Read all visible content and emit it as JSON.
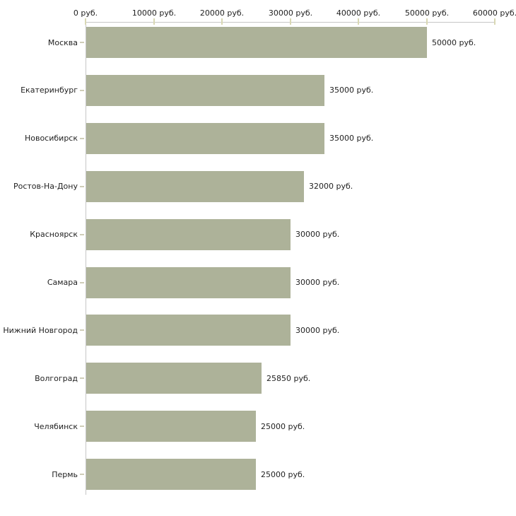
{
  "chart_data": {
    "type": "bar",
    "orientation": "horizontal",
    "title": "",
    "xlabel": "",
    "ylabel": "",
    "categories": [
      "Москва",
      "Екатеринбург",
      "Новосибирск",
      "Ростов-На-Дону",
      "Красноярск",
      "Самара",
      "Нижний Новгород",
      "Волгоград",
      "Челябинск",
      "Пермь"
    ],
    "values": [
      50000,
      35000,
      35000,
      32000,
      30000,
      30000,
      30000,
      25850,
      25000,
      25000
    ],
    "value_labels": [
      "50000 руб.",
      "35000 руб.",
      "35000 руб.",
      "32000 руб.",
      "30000 руб.",
      "30000 руб.",
      "30000 руб.",
      "25850 руб.",
      "25000 руб.",
      "25000 руб."
    ],
    "xlim": [
      0,
      60000
    ],
    "x_ticks": [
      0,
      10000,
      20000,
      30000,
      40000,
      50000,
      60000
    ],
    "x_tick_labels": [
      "0 руб.",
      "10000 руб.",
      "20000 руб.",
      "30000 руб.",
      "40000 руб.",
      "50000 руб.",
      "60000 руб."
    ],
    "axis_position": "top",
    "grid": false,
    "legend": false,
    "colors": {
      "bar": "#adb299",
      "axis_line": "#c6c6c6",
      "axis_tick": "#d9d8b4",
      "y_tick": "#cfcdb8",
      "text": "#1f1f1f",
      "background": "#ffffff"
    }
  }
}
